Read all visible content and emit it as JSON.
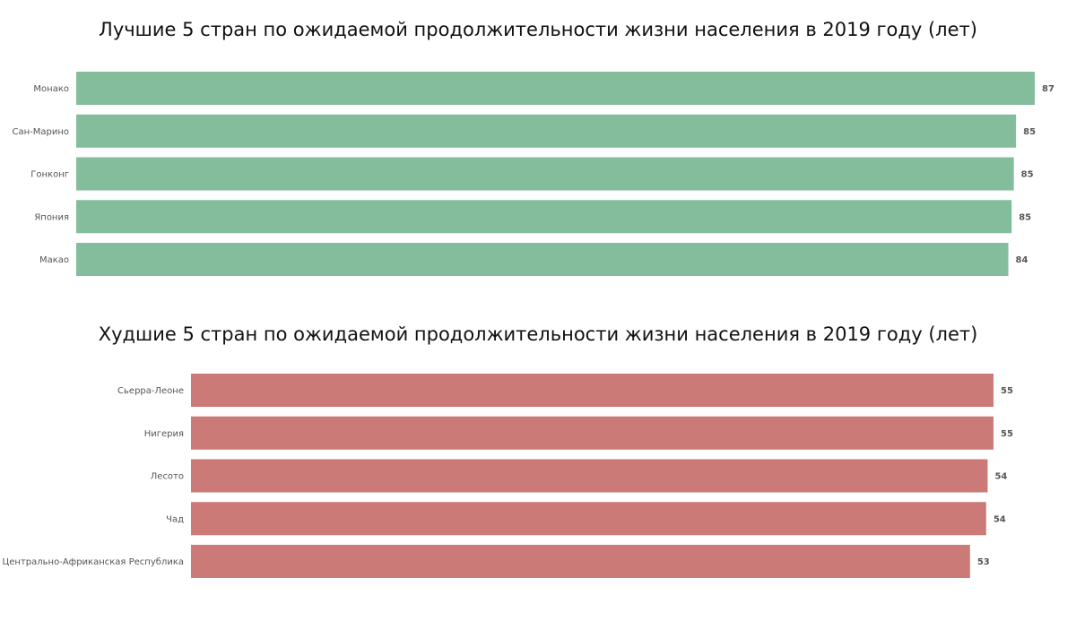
{
  "chart_data": [
    {
      "type": "bar",
      "orientation": "horizontal",
      "title": "Лучшие 5 стран по ожидаемой продолжительности жизни населения в 2019 году (лет)",
      "categories": [
        "Монако",
        "Сан-Марино",
        "Гонконг",
        "Япония",
        "Макао"
      ],
      "values": [
        87,
        85,
        85,
        85,
        84
      ],
      "exact_values": [
        87.1,
        85.4,
        85.2,
        85.0,
        84.7
      ],
      "color": "#83bd9b",
      "grid": false,
      "legend": "none"
    },
    {
      "type": "bar",
      "orientation": "horizontal",
      "title": "Худшие 5 стран по ожидаемой продолжительности жизни населения в 2019 году (лет)",
      "categories": [
        "Сьерра-Леоне",
        "Нигерия",
        "Лесото",
        "Чад",
        "Центрально-Африканская Республика"
      ],
      "values": [
        55,
        55,
        54,
        54,
        53
      ],
      "exact_values": [
        54.7,
        54.7,
        54.3,
        54.2,
        53.1
      ],
      "color": "#cb7a77",
      "grid": false,
      "legend": "none"
    }
  ]
}
